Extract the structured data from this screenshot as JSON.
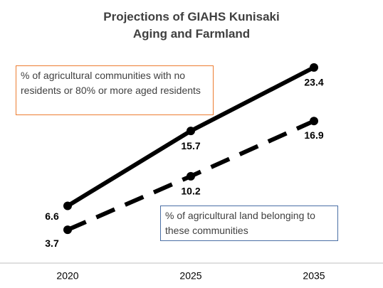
{
  "chart_data": {
    "type": "line",
    "title": "Projections of GIAHS Kunisaki Aging and Farmland",
    "categories": [
      "2020",
      "2025",
      "2035"
    ],
    "ylim": [
      0,
      29
    ],
    "series": [
      {
        "name": "% of agricultural communities with no residents or 80% or more aged residents",
        "color": "#000000",
        "line_style": "solid",
        "box_color": "#ed7d31",
        "values": [
          6.6,
          15.7,
          23.4
        ]
      },
      {
        "name": "% of agricultural land belonging to these communities",
        "color": "#000000",
        "line_style": "dashed",
        "box_color": "#4a6fa5",
        "values": [
          3.7,
          10.2,
          16.9
        ]
      }
    ]
  }
}
